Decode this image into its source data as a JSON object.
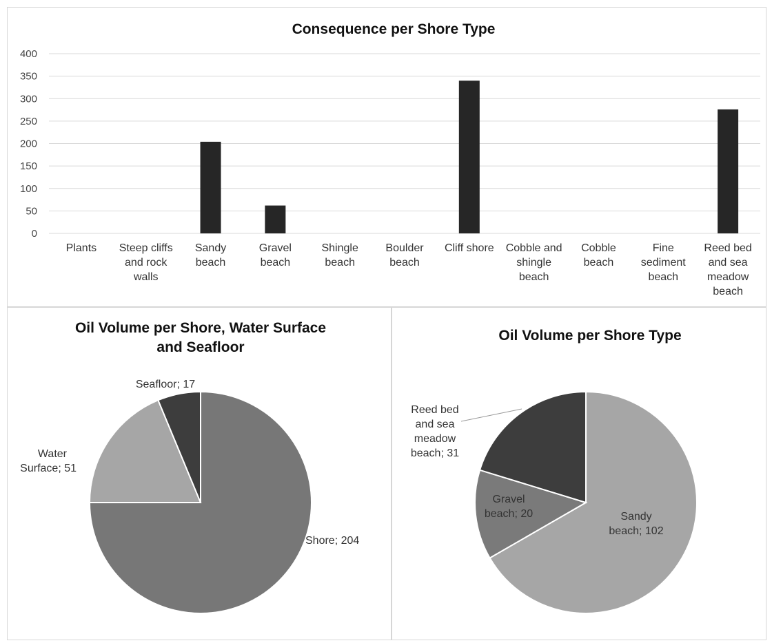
{
  "chart_data": [
    {
      "type": "bar",
      "title": "Consequence per Shore Type",
      "xlabel": "",
      "ylabel": "",
      "ylim": [
        0,
        400
      ],
      "yticks": [
        0,
        50,
        100,
        150,
        200,
        250,
        300,
        350,
        400
      ],
      "grid": true,
      "categories": [
        "Plants",
        "Steep cliffs and rock walls",
        "Sandy beach",
        "Gravel beach",
        "Shingle beach",
        "Boulder beach",
        "Cliff shore",
        "Cobble and shingle beach",
        "Cobble beach",
        "Fine sediment beach",
        "Reed bed and sea meadow beach"
      ],
      "category_lines": [
        [
          "Plants"
        ],
        [
          "Steep cliffs",
          "and rock",
          "walls"
        ],
        [
          "Sandy",
          "beach"
        ],
        [
          "Gravel",
          "beach"
        ],
        [
          "Shingle",
          "beach"
        ],
        [
          "Boulder",
          "beach"
        ],
        [
          "Cliff shore"
        ],
        [
          "Cobble and",
          "shingle",
          "beach"
        ],
        [
          "Cobble",
          "beach"
        ],
        [
          "Fine",
          "sediment",
          "beach"
        ],
        [
          "Reed bed",
          "and sea",
          "meadow",
          "beach"
        ]
      ],
      "values": [
        0,
        0,
        204,
        62,
        0,
        0,
        340,
        0,
        0,
        0,
        276
      ],
      "colors": {
        "bar": "#262626"
      }
    },
    {
      "type": "pie",
      "title": "Oil Volume per Shore, Water Surface and Seafloor",
      "title_lines": [
        "Oil Volume per Shore, Water Surface",
        "and Seafloor"
      ],
      "slices": [
        {
          "label": "Shore",
          "value": 204,
          "text": "Shore; 204",
          "color": "#777777"
        },
        {
          "label": "Water Surface",
          "value": 51,
          "text_lines": [
            "Water",
            "Surface; 51"
          ],
          "color": "#a6a6a6"
        },
        {
          "label": "Seafloor",
          "value": 17,
          "text": "Seafloor; 17",
          "color": "#3d3d3d"
        }
      ]
    },
    {
      "type": "pie",
      "title": "Oil Volume per Shore Type",
      "slices": [
        {
          "label": "Sandy beach",
          "value": 102,
          "text_lines": [
            "Sandy",
            "beach; 102"
          ],
          "color": "#a6a6a6"
        },
        {
          "label": "Gravel beach",
          "value": 20,
          "text_lines": [
            "Gravel",
            "beach; 20"
          ],
          "color": "#7a7a7a"
        },
        {
          "label": "Reed bed and sea meadow beach",
          "value": 31,
          "text_lines": [
            "Reed bed",
            "and sea",
            "meadow",
            "beach; 31"
          ],
          "color": "#3d3d3d"
        }
      ]
    }
  ]
}
